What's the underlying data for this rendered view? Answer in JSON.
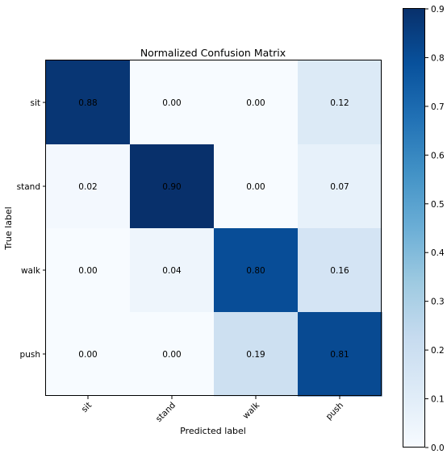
{
  "chart_data": {
    "type": "heatmap",
    "title": "Normalized Confusion Matrix",
    "xlabel": "Predicted label",
    "ylabel": "True label",
    "rows": [
      "sit",
      "stand",
      "walk",
      "push"
    ],
    "cols": [
      "sit",
      "stand",
      "walk",
      "push"
    ],
    "values": [
      [
        0.88,
        0.0,
        0.0,
        0.12
      ],
      [
        0.02,
        0.9,
        0.0,
        0.07
      ],
      [
        0.0,
        0.04,
        0.8,
        0.16
      ],
      [
        0.0,
        0.0,
        0.19,
        0.81
      ]
    ],
    "value_labels": [
      [
        "0.88",
        "0.00",
        "0.00",
        "0.12"
      ],
      [
        "0.02",
        "0.90",
        "0.00",
        "0.07"
      ],
      [
        "0.00",
        "0.04",
        "0.80",
        "0.16"
      ],
      [
        "0.00",
        "0.00",
        "0.19",
        "0.81"
      ]
    ],
    "colormap": "Blues",
    "colorbar": {
      "range": [
        0.0,
        0.9
      ],
      "ticks": [
        0.0,
        0.1,
        0.2,
        0.3,
        0.4,
        0.5,
        0.6,
        0.7,
        0.8,
        0.9
      ],
      "tick_labels": [
        "0.0",
        "0.1",
        "0.2",
        "0.3",
        "0.4",
        "0.5",
        "0.6",
        "0.7",
        "0.8",
        "0.9"
      ]
    },
    "x_tick_rotation": 45
  }
}
